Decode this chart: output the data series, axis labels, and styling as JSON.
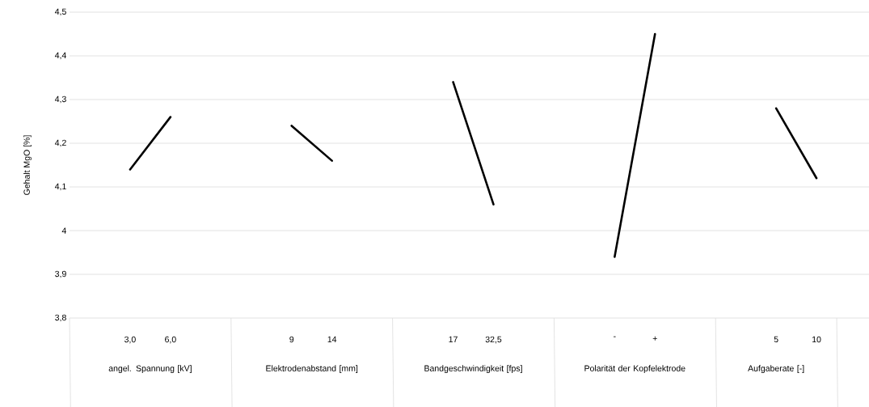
{
  "chart_data": {
    "type": "line",
    "ylabel": "Gehalt MgO [%]",
    "categories": [
      null,
      "3,0",
      "6,0",
      null,
      null,
      "9",
      "14",
      null,
      null,
      "17",
      "32,5",
      null,
      null,
      "-",
      "+",
      null,
      null,
      "5",
      "10",
      null
    ],
    "series": [
      {
        "color": "#000000",
        "values": [
          null,
          4.14,
          4.26,
          null,
          null,
          4.24,
          4.16,
          null,
          null,
          4.34,
          4.06,
          null,
          null,
          3.94,
          4.45,
          null,
          null,
          4.28,
          4.12,
          null
        ]
      }
    ],
    "annotations": [
      "angel. Spannung [kV]",
      "Elektrodenabstand [mm]",
      "Bandgeschwindigkeit [fps]",
      "Polarität der Kopfelektrode",
      "Aufgaberate [-]"
    ],
    "ylim": [
      3.8,
      4.5
    ],
    "yticks": [
      {
        "value": 3.8,
        "label": "3,8"
      },
      {
        "value": 3.9,
        "label": "3,9"
      },
      {
        "value": 4,
        "label": "4"
      },
      {
        "value": 4.1,
        "label": "4,1"
      },
      {
        "value": 4.2,
        "label": "4,2"
      },
      {
        "value": 4.3,
        "label": "4,3"
      },
      {
        "value": 4.4,
        "label": "4,4"
      },
      {
        "value": 4.5,
        "label": "4,5"
      }
    ],
    "grid": "y"
  }
}
